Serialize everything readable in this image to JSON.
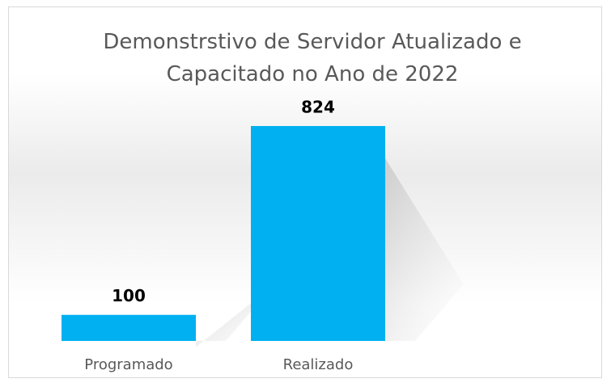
{
  "chart_data": {
    "type": "bar",
    "title": "Demonstrstivo de Servidor Atualizado e Capacitado no Ano de 2022",
    "categories": [
      "Programado",
      "Realizado"
    ],
    "values": [
      100,
      824
    ],
    "color": "#00b0f0"
  }
}
